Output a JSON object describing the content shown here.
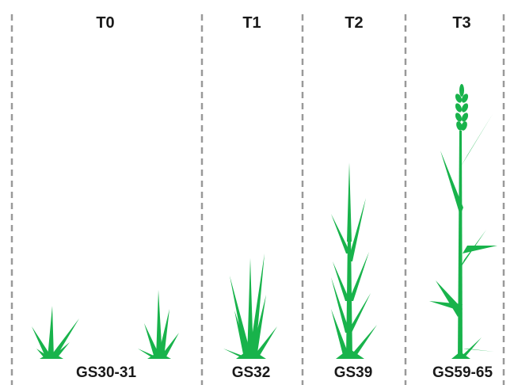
{
  "timings": [
    {
      "label": "T0",
      "growth_stage": "GS30-31"
    },
    {
      "label": "T1",
      "growth_stage": "GS32"
    },
    {
      "label": "T2",
      "growth_stage": "GS39"
    },
    {
      "label": "T3",
      "growth_stage": "GS59-65"
    }
  ],
  "colors": {
    "plant": "#18b34b",
    "divider": "#999999",
    "text": "#1a1a1a"
  }
}
